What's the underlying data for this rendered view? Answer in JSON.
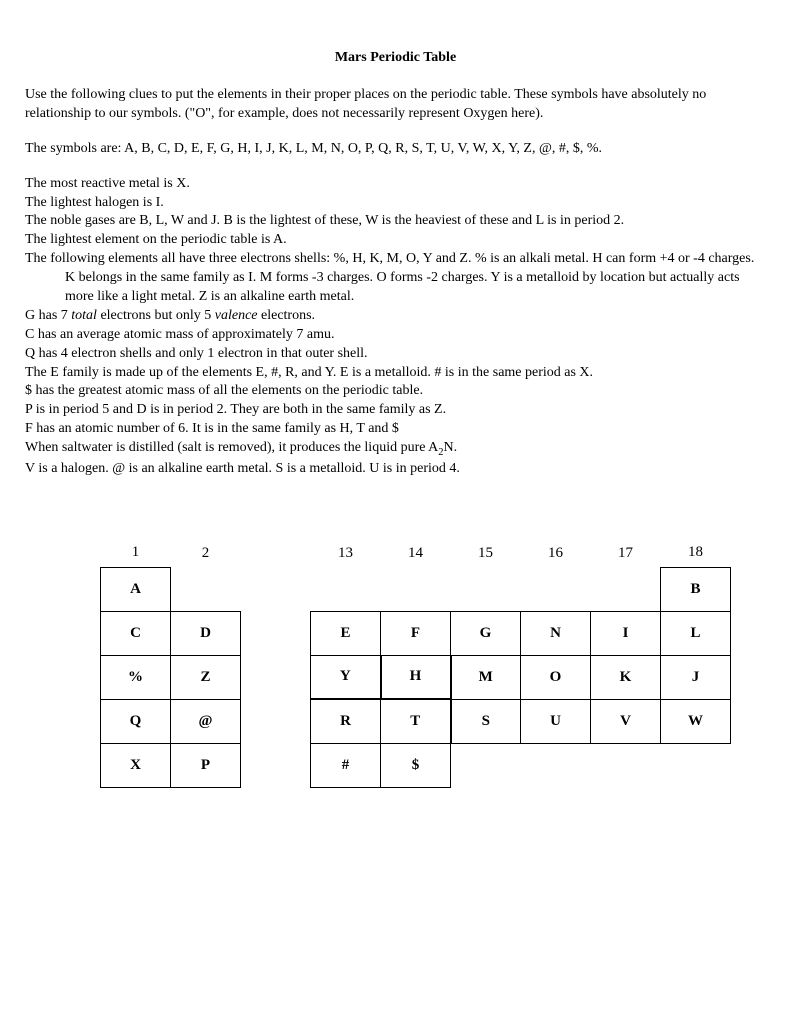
{
  "title": "Mars Periodic Table",
  "intro1": "Use the following clues to put the elements in their proper places on the periodic table.  These symbols have absolutely no relationship to our symbols.  (\"O\", for example, does not necessarily represent Oxygen here).",
  "intro2": "The symbols are:  A, B, C, D, E, F, G, H, I, J, K, L, M, N, O, P, Q, R, S, T, U, V, W, X, Y, Z, @, #, $, %.",
  "clues": [
    "The most reactive metal is X.",
    "The lightest halogen is I.",
    "The noble gases are B, L, W and J.  B is the lightest of these, W is the heaviest of these and L is in period 2.",
    "The lightest element on the periodic table is A.",
    "The following elements all have three electrons shells: %, H, K, M, O, Y and Z.  % is an alkali metal.  H can form +4 or -4 charges.  K belongs in the same family as I.  M forms -3 charges.  O forms -2 charges.  Y is a metalloid by location but actually acts more like a light metal.  Z is an alkaline earth metal.",
    "G has 7 total electrons but only 5 valence electrons.",
    "C has an average atomic mass of approximately 7 amu.",
    "Q has 4 electron shells and only 1 electron in that outer shell.",
    "The E family is made up of the elements E, #, R, and Y.  E is a metalloid.  # is in the same period as X."
  ],
  "clues2": [
    "$ has the greatest atomic mass of all the elements on the periodic table.",
    "P is in period 5 and D is in period 2.  They are both in the same family as Z.",
    "F has an atomic number of 6.  It is in the same family as H, T and $",
    "When saltwater is distilled (salt is removed), it produces the liquid pure A",
    "V is a halogen.  @ is an alkaline earth metal.  S is a metalloid.  U is in period 4."
  ],
  "sub": "2",
  "tail": "N.",
  "table": {
    "headers": [
      "1",
      "2",
      "13",
      "14",
      "15",
      "16",
      "17",
      "18"
    ],
    "rows": [
      [
        "A",
        "",
        "",
        "",
        "",
        "",
        "",
        "B"
      ],
      [
        "C",
        "D",
        "E",
        "F",
        "G",
        "N",
        "I",
        "L"
      ],
      [
        "%",
        "Z",
        "Y",
        "H",
        "M",
        "O",
        "K",
        "J"
      ],
      [
        "Q",
        "@",
        "R",
        "T",
        "S",
        "U",
        "V",
        "W"
      ],
      [
        "X",
        "P",
        "#",
        "$",
        "",
        "",
        "",
        ""
      ]
    ]
  }
}
